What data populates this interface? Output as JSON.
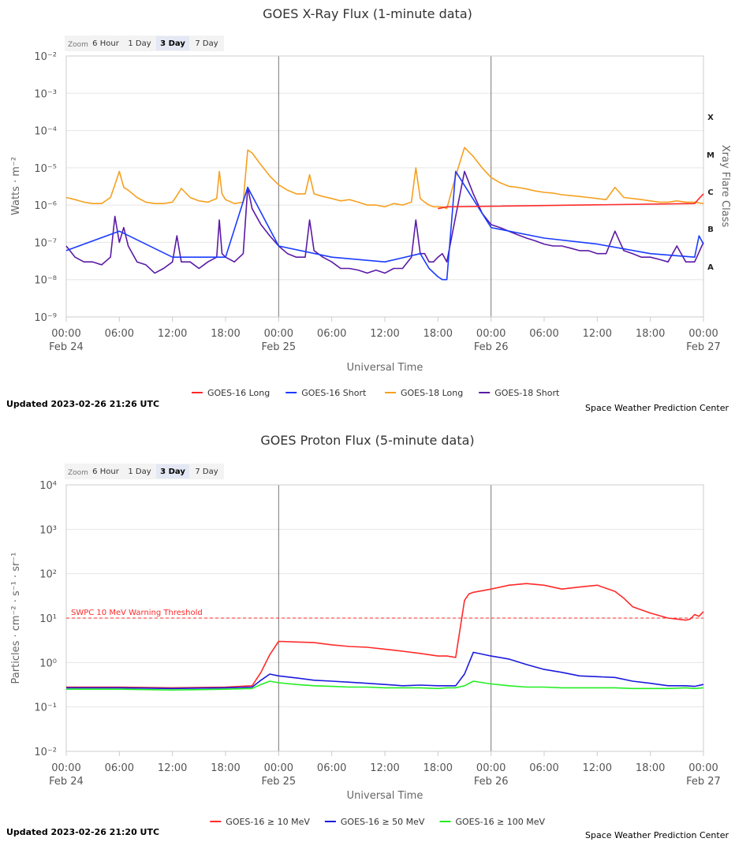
{
  "charts": [
    {
      "id": "xray",
      "title": "GOES X-Ray Flux (1-minute data)",
      "zoom_label": "Zoom",
      "zoom_options": [
        "6 Hour",
        "1 Day",
        "3 Day",
        "7 Day"
      ],
      "zoom_selected": "3 Day",
      "ylabel": "Watts · m⁻²",
      "xlabel": "Universal Time",
      "right_axis_title": "Xray Flare Class",
      "flare_classes": [
        "X",
        "M",
        "C",
        "B",
        "A"
      ],
      "ytick_labels": [
        "10⁻²",
        "10⁻³",
        "10⁻⁴",
        "10⁻⁵",
        "10⁻⁶",
        "10⁻⁷",
        "10⁻⁸",
        "10⁻⁹"
      ],
      "xtick_labels": [
        "00:00",
        "06:00",
        "12:00",
        "18:00",
        "00:00",
        "06:00",
        "12:00",
        "18:00",
        "00:00",
        "06:00",
        "12:00",
        "18:00",
        "00:00"
      ],
      "date_labels": [
        "Feb 24",
        "Feb 25",
        "Feb 26",
        "Feb 27"
      ],
      "updated": "Updated 2023-02-26 21:26 UTC",
      "credit": "Space Weather Prediction Center",
      "legend": [
        {
          "name": "GOES-16 Long",
          "color": "#ff2a2a"
        },
        {
          "name": "GOES-16 Short",
          "color": "#1a3cff"
        },
        {
          "name": "GOES-18 Long",
          "color": "#f5a11f"
        },
        {
          "name": "GOES-18 Short",
          "color": "#5b1aa6"
        }
      ]
    },
    {
      "id": "proton",
      "title": "GOES Proton Flux (5-minute data)",
      "zoom_label": "Zoom",
      "zoom_options": [
        "6 Hour",
        "1 Day",
        "3 Day",
        "7 Day"
      ],
      "zoom_selected": "3 Day",
      "ylabel": "Particles · cm⁻² · s⁻¹ · sr⁻¹",
      "xlabel": "Universal Time",
      "ytick_labels": [
        "10⁴",
        "10³",
        "10²",
        "10¹",
        "10⁰",
        "10⁻¹",
        "10⁻²"
      ],
      "xtick_labels": [
        "00:00",
        "06:00",
        "12:00",
        "18:00",
        "00:00",
        "06:00",
        "12:00",
        "18:00",
        "00:00",
        "06:00",
        "12:00",
        "18:00",
        "00:00"
      ],
      "date_labels": [
        "Feb 24",
        "Feb 25",
        "Feb 26",
        "Feb 27"
      ],
      "threshold_label": "SWPC 10 MeV Warning Threshold",
      "updated": "Updated 2023-02-26 21:20 UTC",
      "credit": "Space Weather Prediction Center",
      "legend": [
        {
          "name": "GOES-16 ≥ 10 MeV",
          "color": "#ff2a2a"
        },
        {
          "name": "GOES-16 ≥ 50 MeV",
          "color": "#1a1adc"
        },
        {
          "name": "GOES-16 ≥ 100 MeV",
          "color": "#22ee22"
        }
      ]
    }
  ],
  "chart_data": [
    {
      "type": "line",
      "title": "GOES X-Ray Flux (1-minute data)",
      "xlabel": "Universal Time",
      "ylabel": "Watts · m⁻²",
      "y_scale": "log",
      "ylim": [
        1e-09,
        0.01
      ],
      "xlim": [
        "2023-02-24 00:00",
        "2023-02-27 00:00"
      ],
      "x_unit": "hours since 2023-02-24 00:00 UTC",
      "grid": true,
      "legend_position": "bottom",
      "series": [
        {
          "name": "GOES-18 Long",
          "color": "#f5a11f",
          "x": [
            0,
            1,
            2,
            3,
            4,
            5,
            5.5,
            6,
            6.5,
            7,
            8,
            9,
            10,
            11,
            12,
            12.5,
            13,
            14,
            15,
            16,
            17,
            17.3,
            17.6,
            18,
            19,
            20,
            20.5,
            21,
            22,
            23,
            24,
            25,
            26,
            27,
            27.5,
            28,
            29,
            30,
            31,
            32,
            33,
            34,
            35,
            36,
            37,
            38,
            39,
            39.5,
            40,
            40.5,
            41,
            41.5,
            42,
            42.5,
            43,
            44,
            45,
            46,
            47,
            48,
            49,
            50,
            51,
            52,
            53,
            54,
            55,
            56,
            57,
            58,
            59,
            60,
            61,
            62,
            63,
            64,
            65,
            66,
            67,
            68,
            69,
            70,
            71,
            72
          ],
          "y": [
            1.6e-06,
            1.4e-06,
            1.2e-06,
            1.1e-06,
            1.1e-06,
            1.6e-06,
            3.5e-06,
            8e-06,
            3e-06,
            2.5e-06,
            1.6e-06,
            1.2e-06,
            1.1e-06,
            1.1e-06,
            1.2e-06,
            1.8e-06,
            2.8e-06,
            1.6e-06,
            1.3e-06,
            1.2e-06,
            1.5e-06,
            8e-06,
            2e-06,
            1.4e-06,
            1.1e-06,
            1.2e-06,
            3e-05,
            2.5e-05,
            1.2e-05,
            6e-06,
            3.5e-06,
            2.5e-06,
            2e-06,
            2e-06,
            6.5e-06,
            2e-06,
            1.7e-06,
            1.5e-06,
            1.3e-06,
            1.4e-06,
            1.2e-06,
            1e-06,
            1e-06,
            9e-07,
            1.1e-06,
            1e-06,
            1.2e-06,
            1e-05,
            1.5e-06,
            1.2e-06,
            1e-06,
            9e-07,
            9e-07,
            9e-07,
            8e-07,
            6e-06,
            3.5e-05,
            2e-05,
            1e-05,
            5.5e-06,
            4e-06,
            3.2e-06,
            3e-06,
            2.7e-06,
            2.4e-06,
            2.2e-06,
            2.1e-06,
            1.9e-06,
            1.8e-06,
            1.7e-06,
            1.6e-06,
            1.5e-06,
            1.4e-06,
            3e-06,
            1.6e-06,
            1.5e-06,
            1.4e-06,
            1.3e-06,
            1.2e-06,
            1.2e-06,
            1.3e-06,
            1.2e-06,
            1.2e-06,
            1.1e-06
          ]
        },
        {
          "name": "GOES-18 Short",
          "color": "#5b1aa6",
          "x": [
            0,
            1,
            2,
            3,
            4,
            5,
            5.5,
            6,
            6.5,
            7,
            8,
            9,
            10,
            11,
            12,
            12.5,
            13,
            14,
            15,
            16,
            17,
            17.3,
            17.6,
            18,
            19,
            20,
            20.5,
            21,
            22,
            23,
            24,
            25,
            26,
            27,
            27.5,
            28,
            29,
            30,
            31,
            32,
            33,
            34,
            35,
            36,
            37,
            38,
            39,
            39.5,
            40,
            40.5,
            41,
            41.5,
            42,
            42.5,
            43,
            44,
            45,
            46,
            47,
            48,
            49,
            50,
            51,
            52,
            53,
            54,
            55,
            56,
            57,
            58,
            59,
            60,
            61,
            62,
            63,
            64,
            65,
            66,
            67,
            68,
            69,
            70,
            71,
            72
          ],
          "y": [
            8e-08,
            4e-08,
            3e-08,
            3e-08,
            2.5e-08,
            4e-08,
            5e-07,
            1e-07,
            2.5e-07,
            8e-08,
            3e-08,
            2.5e-08,
            1.5e-08,
            2e-08,
            3e-08,
            1.5e-07,
            3e-08,
            3e-08,
            2e-08,
            3e-08,
            4e-08,
            4e-07,
            5e-08,
            4e-08,
            3e-08,
            5e-08,
            3e-06,
            8e-07,
            3e-07,
            1.5e-07,
            8e-08,
            5e-08,
            4e-08,
            4e-08,
            4e-07,
            6e-08,
            4e-08,
            3e-08,
            2e-08,
            2e-08,
            1.8e-08,
            1.5e-08,
            1.8e-08,
            1.5e-08,
            2e-08,
            2e-08,
            4e-08,
            4e-07,
            5e-08,
            5e-08,
            3e-08,
            3e-08,
            4e-08,
            5e-08,
            3e-08,
            5e-07,
            8e-06,
            2e-06,
            6e-07,
            3e-07,
            2.5e-07,
            2e-07,
            1.6e-07,
            1.3e-07,
            1.1e-07,
            9e-08,
            8e-08,
            8e-08,
            7e-08,
            6e-08,
            6e-08,
            5e-08,
            5e-08,
            2e-07,
            6e-08,
            5e-08,
            4e-08,
            4e-08,
            3.5e-08,
            3e-08,
            8e-08,
            3e-08,
            3e-08,
            1e-07
          ]
        },
        {
          "name": "GOES-16 Short",
          "color": "#1a3cff",
          "x": [
            0,
            6,
            12,
            18,
            20.5,
            24,
            30,
            36,
            40,
            41,
            42,
            42.5,
            43,
            44,
            48,
            54,
            60,
            66,
            71,
            71.5,
            72
          ],
          "y": [
            6e-08,
            2e-07,
            4e-08,
            4e-08,
            3e-06,
            8e-08,
            4e-08,
            3e-08,
            5e-08,
            2e-08,
            1.2e-08,
            1e-08,
            1e-08,
            8e-06,
            2.5e-07,
            1.3e-07,
            9e-08,
            5e-08,
            4e-08,
            1.5e-07,
            9e-08
          ]
        },
        {
          "name": "GOES-16 Long",
          "color": "#ff2a2a",
          "x": [
            42,
            43,
            71,
            71.5,
            72
          ],
          "y": [
            8e-07,
            9e-07,
            1.1e-06,
            1.5e-06,
            2e-06
          ]
        }
      ]
    },
    {
      "type": "line",
      "title": "GOES Proton Flux (5-minute data)",
      "xlabel": "Universal Time",
      "ylabel": "Particles · cm⁻² · s⁻¹ · sr⁻¹",
      "y_scale": "log",
      "ylim": [
        0.01,
        10000
      ],
      "xlim": [
        "2023-02-24 00:00",
        "2023-02-27 00:00"
      ],
      "x_unit": "hours since 2023-02-24 00:00 UTC",
      "threshold": {
        "label": "SWPC 10 MeV Warning Threshold",
        "value": 10
      },
      "grid": true,
      "legend_position": "bottom",
      "series": [
        {
          "name": "GOES-16 ≥ 10 MeV",
          "color": "#ff2a2a",
          "x": [
            0,
            6,
            12,
            18,
            21,
            22,
            23,
            24,
            26,
            28,
            30,
            32,
            34,
            36,
            38,
            40,
            42,
            43,
            44,
            45,
            45.5,
            46,
            48,
            50,
            52,
            54,
            56,
            58,
            60,
            62,
            63,
            64,
            66,
            68,
            70,
            70.5,
            71,
            71.5,
            72
          ],
          "y": [
            0.28,
            0.28,
            0.27,
            0.28,
            0.3,
            0.6,
            1.5,
            3.0,
            2.9,
            2.8,
            2.5,
            2.3,
            2.2,
            2.0,
            1.8,
            1.6,
            1.4,
            1.4,
            1.3,
            25,
            35,
            38,
            45,
            55,
            60,
            55,
            45,
            50,
            55,
            40,
            28,
            18,
            13,
            10,
            9,
            9.5,
            12,
            11,
            14
          ]
        },
        {
          "name": "GOES-16 ≥ 50 MeV",
          "color": "#1a1adc",
          "x": [
            0,
            6,
            12,
            18,
            21,
            22,
            23,
            24,
            26,
            28,
            30,
            32,
            34,
            36,
            38,
            40,
            42,
            43,
            44,
            45,
            46,
            48,
            50,
            52,
            54,
            56,
            58,
            60,
            62,
            64,
            66,
            68,
            70,
            71,
            72
          ],
          "y": [
            0.27,
            0.27,
            0.26,
            0.27,
            0.28,
            0.4,
            0.55,
            0.5,
            0.45,
            0.4,
            0.38,
            0.36,
            0.34,
            0.32,
            0.3,
            0.31,
            0.3,
            0.3,
            0.3,
            0.55,
            1.7,
            1.4,
            1.2,
            0.9,
            0.7,
            0.6,
            0.5,
            0.48,
            0.46,
            0.38,
            0.34,
            0.3,
            0.3,
            0.29,
            0.32
          ]
        },
        {
          "name": "GOES-16 ≥ 100 MeV",
          "color": "#22ee22",
          "x": [
            0,
            6,
            12,
            18,
            21,
            22,
            23,
            24,
            26,
            28,
            30,
            32,
            34,
            36,
            38,
            40,
            42,
            43,
            44,
            45,
            46,
            48,
            50,
            52,
            54,
            56,
            58,
            60,
            62,
            64,
            66,
            68,
            70,
            71,
            72
          ],
          "y": [
            0.25,
            0.25,
            0.24,
            0.25,
            0.26,
            0.32,
            0.38,
            0.35,
            0.32,
            0.3,
            0.29,
            0.28,
            0.28,
            0.27,
            0.27,
            0.27,
            0.26,
            0.27,
            0.27,
            0.3,
            0.38,
            0.33,
            0.3,
            0.28,
            0.28,
            0.27,
            0.27,
            0.27,
            0.27,
            0.26,
            0.26,
            0.26,
            0.27,
            0.26,
            0.27
          ]
        }
      ]
    }
  ]
}
